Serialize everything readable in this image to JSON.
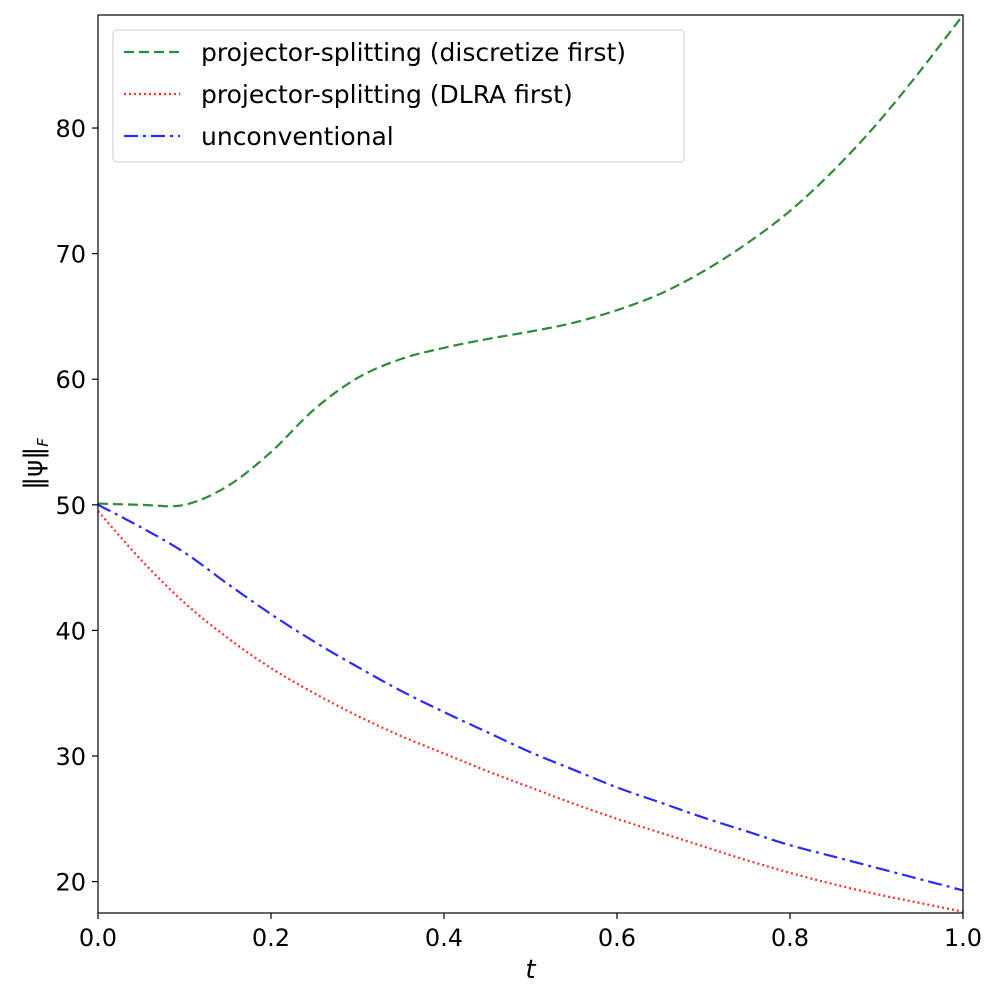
{
  "chart_data": {
    "type": "line",
    "title": "",
    "xlabel": "t",
    "ylabel": "‖ψ‖_F",
    "ylabel_main": "‖ψ‖",
    "ylabel_sub": "F",
    "xlim": [
      0.0,
      1.0
    ],
    "ylim": [
      17.5,
      89.0
    ],
    "xticks": [
      0.0,
      0.2,
      0.4,
      0.6,
      0.8,
      1.0
    ],
    "xtick_labels": [
      "0.0",
      "0.2",
      "0.4",
      "0.6",
      "0.8",
      "1.0"
    ],
    "yticks": [
      20,
      30,
      40,
      50,
      60,
      70,
      80
    ],
    "ytick_labels": [
      "20",
      "30",
      "40",
      "50",
      "60",
      "70",
      "80"
    ],
    "grid": false,
    "legend_position": "top-left",
    "x": [
      0.0,
      0.05,
      0.1,
      0.15,
      0.2,
      0.25,
      0.3,
      0.35,
      0.4,
      0.45,
      0.5,
      0.55,
      0.6,
      0.65,
      0.7,
      0.75,
      0.8,
      0.85,
      0.9,
      0.95,
      1.0
    ],
    "series": [
      {
        "name": "projector-splitting (discretize first)",
        "color": "#2e8b3a",
        "dash": "dashed",
        "values": [
          50.1,
          50.0,
          50.0,
          51.5,
          54.2,
          57.6,
          60.1,
          61.6,
          62.5,
          63.2,
          63.8,
          64.5,
          65.5,
          66.8,
          68.6,
          70.8,
          73.4,
          76.6,
          80.3,
          84.5,
          89.0
        ]
      },
      {
        "name": "projector-splitting (DLRA first)",
        "color": "#ff2a2a",
        "dash": "dotted",
        "values": [
          49.5,
          45.6,
          42.2,
          39.4,
          37.0,
          35.0,
          33.2,
          31.6,
          30.2,
          28.8,
          27.5,
          26.2,
          25.0,
          23.9,
          22.8,
          21.7,
          20.7,
          19.8,
          19.0,
          18.3,
          17.6
        ]
      },
      {
        "name": "unconventional",
        "color": "#2a2aff",
        "dash": "dashdot",
        "values": [
          50.0,
          48.2,
          46.2,
          43.7,
          41.3,
          39.1,
          37.1,
          35.2,
          33.5,
          31.9,
          30.3,
          28.9,
          27.5,
          26.3,
          25.1,
          24.0,
          22.9,
          22.0,
          21.1,
          20.2,
          19.3
        ]
      }
    ]
  }
}
